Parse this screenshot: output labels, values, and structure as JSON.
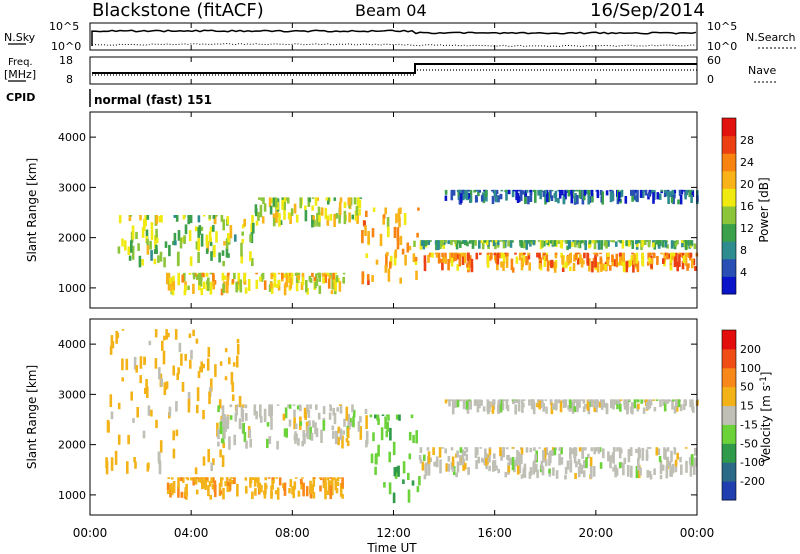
{
  "header": {
    "station": "Blackstone (fitACF)",
    "beam": "Beam 04",
    "date": "16/Sep/2014"
  },
  "noise_panel": {
    "left_label": "N.Sky",
    "right_label": "N.Search",
    "top_tick": "10^5",
    "bottom_tick": "10^0"
  },
  "freq_panel": {
    "left_label_1": "Freq.",
    "left_label_2": "[MHz]",
    "right_label": "Nave",
    "left_ticks": [
      "18",
      "8"
    ],
    "right_ticks": [
      "60",
      "0"
    ]
  },
  "cpid_panel": {
    "label": "CPID",
    "value": "normal (fast) 151"
  },
  "x_axis": {
    "label": "Time UT",
    "ticks": [
      "00:00",
      "04:00",
      "08:00",
      "12:00",
      "16:00",
      "20:00",
      "00:00"
    ]
  },
  "chart_data": [
    {
      "type": "heatmap",
      "title": "",
      "quantity": "Power",
      "ylabel": "Slant Range [km]",
      "yticks": [
        1000,
        2000,
        3000,
        4000
      ],
      "ylim": [
        600,
        4500
      ],
      "xlim_hours": [
        0,
        24
      ],
      "colorbar": {
        "label": "Power [dB]",
        "ticks": [
          "4",
          "8",
          "12",
          "16",
          "20",
          "24",
          "28"
        ],
        "colors": [
          "#0a14c8",
          "#2a4fb4",
          "#2e8c8e",
          "#3aa04a",
          "#8cc43a",
          "#f0ea10",
          "#f9b218",
          "#f98310",
          "#ec3f12",
          "#e2130e"
        ]
      },
      "bands": [
        {
          "t": [
            1.0,
            6.5
          ],
          "r": [
            1400,
            2450
          ],
          "power_db": 14
        },
        {
          "t": [
            6.5,
            10.7
          ],
          "r": [
            2200,
            2800
          ],
          "power_db": 16
        },
        {
          "t": [
            10.7,
            13.0
          ],
          "r": [
            1000,
            2600
          ],
          "power_db": 20
        },
        {
          "t": [
            13.0,
            24.0
          ],
          "r": [
            1300,
            1700
          ],
          "power_db": 22
        },
        {
          "t": [
            13.0,
            24.0
          ],
          "r": [
            1750,
            1950
          ],
          "power_db": 12
        },
        {
          "t": [
            14.0,
            24.0
          ],
          "r": [
            2650,
            2950
          ],
          "power_db": 6
        },
        {
          "t": [
            3.0,
            10.0
          ],
          "r": [
            850,
            1300
          ],
          "power_db": 18
        }
      ]
    },
    {
      "type": "heatmap",
      "title": "",
      "quantity": "Velocity",
      "ylabel": "Slant Range [km]",
      "yticks": [
        1000,
        2000,
        3000,
        4000
      ],
      "ylim": [
        600,
        4500
      ],
      "xlim_hours": [
        0,
        24
      ],
      "colorbar": {
        "label": "Velocity [m s^-1]",
        "ticks": [
          "200",
          "100",
          "50",
          "15",
          "-15",
          "-50",
          "-100",
          "-200"
        ],
        "colors": [
          "#1f3fb0",
          "#2a6a86",
          "#2f9a4a",
          "#6cd23a",
          "#bfbfb6",
          "#f3b318",
          "#f9881a",
          "#ef4d15",
          "#e30d0d"
        ]
      },
      "bands": [
        {
          "t": [
            0.5,
            6.0
          ],
          "r": [
            1400,
            4300
          ],
          "velocity": -30
        },
        {
          "t": [
            5.0,
            11.0
          ],
          "r": [
            1900,
            2800
          ],
          "velocity": 0
        },
        {
          "t": [
            3.0,
            10.0
          ],
          "r": [
            900,
            1350
          ],
          "velocity": -40
        },
        {
          "t": [
            11.0,
            13.0
          ],
          "r": [
            800,
            2600
          ],
          "velocity": 40
        },
        {
          "t": [
            13.0,
            24.0
          ],
          "r": [
            1300,
            1950
          ],
          "velocity": 0
        },
        {
          "t": [
            14.0,
            24.0
          ],
          "r": [
            2600,
            2900
          ],
          "velocity": 0
        }
      ]
    }
  ]
}
